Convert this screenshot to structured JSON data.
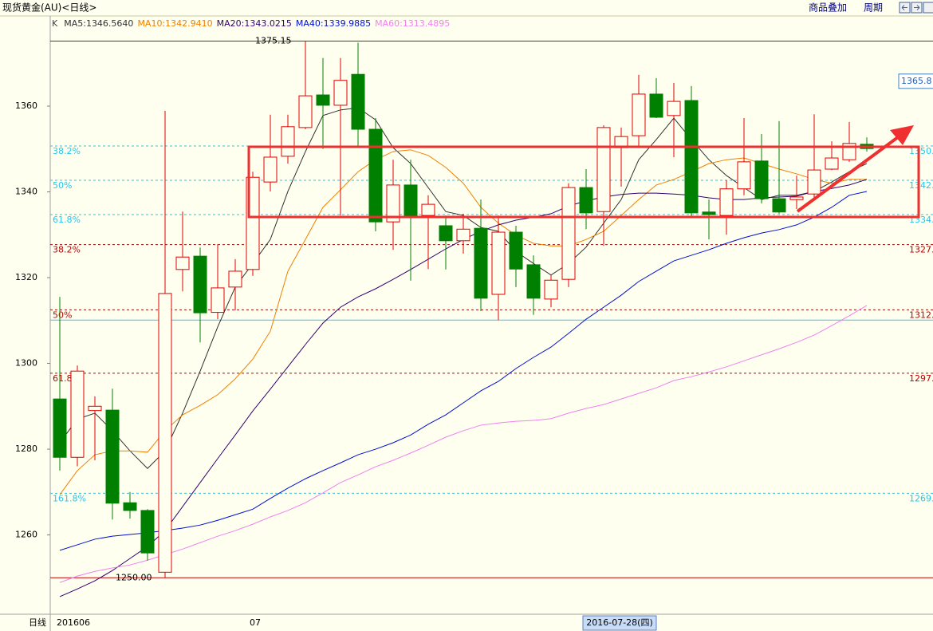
{
  "chart_data": {
    "type": "candlestick",
    "title": "现货黄金(AU)<日线>",
    "buttons": [
      "商品叠加",
      "周期"
    ],
    "period_label": "日线",
    "legend_prefix": "K",
    "categories": [
      "201606",
      null,
      null,
      null,
      null,
      null,
      null,
      null,
      null,
      null,
      null,
      "07",
      null,
      null,
      null,
      null,
      null,
      null,
      null,
      null,
      null,
      null,
      null,
      null,
      null,
      null,
      null,
      null,
      null,
      null,
      null,
      null,
      null,
      null,
      null,
      null,
      null,
      null,
      null,
      null,
      null,
      null,
      null,
      null,
      null,
      null,
      null
    ],
    "candles": {
      "open": [
        1291.7,
        1278.1,
        1289,
        1289.1,
        1267.5,
        1265.7,
        1251.3,
        1321.9,
        1325,
        1311.9,
        1317.8,
        1321.9,
        1342.3,
        1348.3,
        1355,
        1362.6,
        1360.2,
        1367.4,
        1354.6,
        1333,
        1341.6,
        1334.5,
        1332.1,
        1328.6,
        1331.5,
        1316.1,
        1330.6,
        1323,
        1315,
        1319.6,
        1341,
        1335.4,
        1350.3,
        1353.1,
        1362.8,
        1357.8,
        1361.3,
        1335.3,
        1334.5,
        1340.7,
        1347.2,
        1338.4,
        1338.2,
        1339.5,
        1345.3,
        1347.5,
        1351.1
      ],
      "high": [
        1315.5,
        1299.5,
        1292.3,
        1294.1,
        1270,
        1266,
        1358.9,
        1335.4,
        1327,
        1327.8,
        1324.3,
        1344.7,
        1358,
        1358,
        1375.15,
        1371.2,
        1371.2,
        1374.8,
        1357.2,
        1347.5,
        1347.5,
        1339.2,
        1334.5,
        1334.9,
        1338.2,
        1334.5,
        1332.1,
        1325.2,
        1320.6,
        1342,
        1345.3,
        1355.5,
        1355,
        1367.3,
        1366.5,
        1365.4,
        1364.7,
        1338.2,
        1342.7,
        1357.2,
        1353.5,
        1356.5,
        1343.8,
        1358.1,
        1351.8,
        1356.3,
        1352.7
      ],
      "low": [
        1275,
        1276,
        1277.4,
        1263.6,
        1263.8,
        1254,
        1250,
        1316.8,
        1304.9,
        1310.3,
        1312.4,
        1320.4,
        1340.1,
        1346.6,
        1354.6,
        1350,
        1334.5,
        1350.3,
        1330.8,
        1326.5,
        1319.3,
        1322,
        1321.9,
        1325.6,
        1312.2,
        1310.1,
        1317.8,
        1311.3,
        1313.1,
        1317.8,
        1331.3,
        1327.4,
        1341.2,
        1350.5,
        1357.2,
        1348.1,
        1334.1,
        1328.9,
        1330,
        1339.2,
        1337.3,
        1334.9,
        1336,
        1338.2,
        1345.1,
        1347,
        1349.4
      ],
      "close": [
        1278.1,
        1298.2,
        1290,
        1267.4,
        1265.7,
        1255.8,
        1316.3,
        1324.8,
        1311.8,
        1317.6,
        1321.5,
        1343.4,
        1348.1,
        1355.2,
        1362.4,
        1360.2,
        1366,
        1354.6,
        1333,
        1341.6,
        1334.5,
        1337.1,
        1328.6,
        1331.3,
        1315.2,
        1330.6,
        1322,
        1315.2,
        1319.4,
        1341,
        1335.1,
        1355,
        1352.9,
        1362.8,
        1357.4,
        1361.1,
        1335.1,
        1334.7,
        1340.7,
        1347,
        1338.4,
        1335.3,
        1338.8,
        1345.1,
        1347.9,
        1351.3,
        1350.1
      ],
      "up_color": "#e00000",
      "down_color": "#008000"
    },
    "series": [
      {
        "name": "MA5:1346.5640",
        "color": "#303030",
        "values": [
          1281.5,
          1287,
          1288.4,
          1284.3,
          1279.6,
          1275.5,
          1279.6,
          1288.4,
          1298.2,
          1308.5,
          1317.8,
          1323.3,
          1328.9,
          1340.1,
          1349.4,
          1357.8,
          1359.1,
          1359.6,
          1356.8,
          1350.3,
          1346.6,
          1341,
          1335.4,
          1334.5,
          1331.7,
          1330.8,
          1326.1,
          1323.3,
          1320.6,
          1323.3,
          1327.1,
          1332.7,
          1338.2,
          1347.5,
          1352.2,
          1357.2,
          1352.2,
          1347.5,
          1343.8,
          1341,
          1338.2,
          1339.2,
          1339.2,
          1340.1,
          1342.3,
          1344.7,
          1346.6
        ]
      },
      {
        "name": "MA10:1342.9410",
        "color": "#f08000",
        "values": [
          1269.4,
          1275,
          1278.7,
          1279.6,
          1279.6,
          1279.3,
          1284.3,
          1288,
          1290.2,
          1292.7,
          1296.4,
          1301,
          1307.5,
          1321.5,
          1328.9,
          1336.4,
          1340.5,
          1344.7,
          1347.5,
          1349.4,
          1349.8,
          1348.5,
          1345.7,
          1342,
          1336.4,
          1332.7,
          1329.9,
          1328,
          1327.4,
          1327.4,
          1328.9,
          1330.8,
          1334.5,
          1338.2,
          1341.6,
          1342.9,
          1344.7,
          1346.6,
          1347.5,
          1347.9,
          1346.6,
          1345.3,
          1344.2,
          1342.9,
          1342,
          1342.9,
          1342.9
        ]
      },
      {
        "name": "MA20:1343.0215",
        "color": "#300070",
        "values": [
          1245.6,
          1247.4,
          1249.3,
          1251.7,
          1254.5,
          1257.3,
          1261.0,
          1266.6,
          1272.2,
          1277.8,
          1283.3,
          1288.9,
          1294.0,
          1299.2,
          1304.4,
          1309.4,
          1313.1,
          1315.5,
          1317.4,
          1319.6,
          1321.9,
          1324.3,
          1326.7,
          1328.9,
          1330.8,
          1332.3,
          1333.4,
          1334.1,
          1334.9,
          1336.7,
          1337.9,
          1338.8,
          1339.4,
          1339.7,
          1339.7,
          1339.5,
          1339.2,
          1338.6,
          1338.2,
          1338.2,
          1338.6,
          1338.8,
          1339.0,
          1340.1,
          1340.8,
          1341.6,
          1342.9
        ]
      },
      {
        "name": "MA40:1339.9885",
        "color": "#0010d0",
        "values": [
          1256.4,
          1257.7,
          1259.0,
          1259.7,
          1260.1,
          1260.5,
          1261.0,
          1261.6,
          1262.3,
          1263.4,
          1264.7,
          1266.0,
          1268.5,
          1270.9,
          1273.1,
          1275.0,
          1276.8,
          1278.7,
          1280.0,
          1281.5,
          1283.3,
          1285.8,
          1288.0,
          1290.8,
          1293.6,
          1295.8,
          1298.8,
          1301.4,
          1303.8,
          1307.0,
          1310.3,
          1313.1,
          1315.9,
          1319.1,
          1321.5,
          1323.9,
          1325.2,
          1326.5,
          1328.0,
          1329.3,
          1330.4,
          1331.2,
          1332.3,
          1334.1,
          1336.4,
          1339.2,
          1340.1
        ]
      },
      {
        "name": "MA60:1313.4895",
        "color": "#f080f0",
        "values": [
          1248.9,
          1250.4,
          1251.5,
          1252.3,
          1253.0,
          1254.1,
          1255.4,
          1256.7,
          1258.2,
          1259.7,
          1261.0,
          1262.5,
          1264.2,
          1265.7,
          1267.5,
          1269.8,
          1272.2,
          1274.0,
          1275.9,
          1277.4,
          1279.1,
          1280.9,
          1282.8,
          1284.3,
          1285.6,
          1286.1,
          1286.5,
          1286.7,
          1287.1,
          1288.4,
          1289.5,
          1290.4,
          1291.7,
          1293.0,
          1294.3,
          1296.0,
          1296.9,
          1298.0,
          1299.2,
          1300.6,
          1302.0,
          1303.4,
          1304.9,
          1306.6,
          1308.8,
          1311.1,
          1313.5
        ]
      }
    ],
    "ylim": [
      1241.5,
      1377.3
    ],
    "yticks": [
      1260,
      1280,
      1300,
      1320,
      1340,
      1360
    ],
    "fib_levels": [
      {
        "label": "38.2%",
        "value": 1350.7,
        "color": "#20c8f0"
      },
      {
        "label": "50%",
        "value": 1342.7,
        "color": "#20c8f0"
      },
      {
        "label": "61.8%",
        "value": 1334.7,
        "color": "#20c8f0"
      },
      {
        "label": "161.8%",
        "value": 1269.7,
        "color": "#20c8f0"
      },
      {
        "label": "38.2%",
        "value": 1327.7,
        "color": "#c00000"
      },
      {
        "label": "50%",
        "value": 1312.5,
        "color": "#c00000"
      },
      {
        "label": "61.8%",
        "value": 1297.7,
        "color": "#c00000"
      }
    ],
    "reference_line": {
      "value": 1310.1,
      "color": "#40c0f0"
    },
    "high_marker": {
      "value": 1375.15,
      "color": "#404040"
    },
    "low_marker": {
      "value": 1250,
      "label": "1250.00",
      "color": "#c00000"
    },
    "cursor_price": 1365.8,
    "cursor_date": "2016-07-28(四)"
  }
}
